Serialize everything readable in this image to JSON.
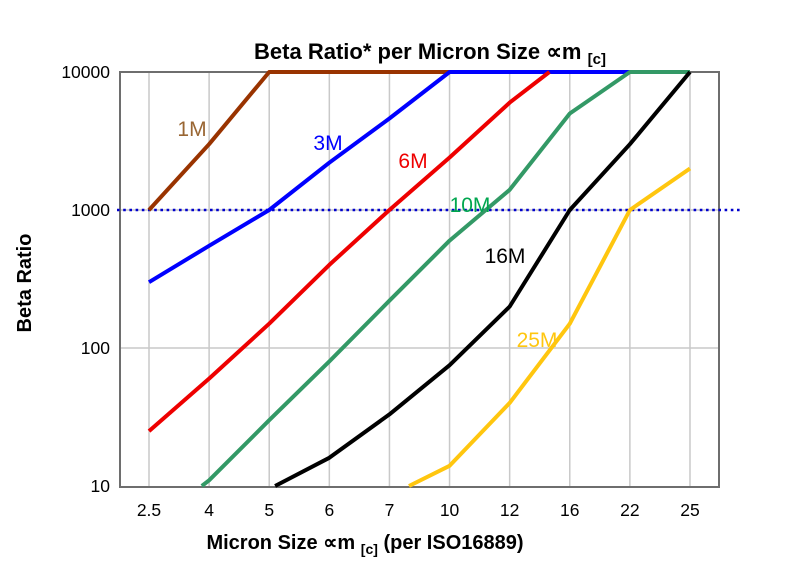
{
  "chart_data": {
    "type": "line",
    "title": "Beta Ratio* per Micron Size ∝m[c]",
    "title_parts": {
      "main": "Beta Ratio* per Micron Size ∝m",
      "sub": "[c]"
    },
    "xlabel": "Micron Size ∝m[c] (per ISO16889)",
    "xlabel_parts": {
      "pre": "Micron Size ∝m",
      "sub": "[c]",
      "post": " (per ISO16889)"
    },
    "ylabel": "Beta Ratio",
    "x_axis": {
      "scale": "category",
      "categories": [
        2.5,
        4,
        5,
        6,
        7,
        10,
        12,
        16,
        22,
        25
      ],
      "tick_labels": [
        "2.5",
        "4",
        "5",
        "6",
        "7",
        "10",
        "12",
        "16",
        "22",
        "25"
      ]
    },
    "y_axis": {
      "scale": "log",
      "range": [
        10,
        10000
      ],
      "ticks": [
        10,
        100,
        1000,
        10000
      ],
      "tick_labels": [
        "10",
        "100",
        "1000",
        "10000"
      ]
    },
    "reference_line": {
      "value": 1000,
      "style": "dotted",
      "color": "#0000CC"
    },
    "grid": {
      "vertical": true,
      "horizontal": true,
      "color": "#C9C9C9"
    },
    "plot_border_color": "#6E6E6E",
    "series": [
      {
        "name": "1M",
        "label": "1M",
        "color": "#993300",
        "label_color": "#996633",
        "values": [
          1000,
          3000,
          10000,
          10000,
          10000,
          10000,
          null,
          null,
          null,
          null
        ]
      },
      {
        "name": "3M",
        "label": "3M",
        "color": "#0000FF",
        "label_color": "#0000FF",
        "values": [
          300,
          550,
          1000,
          2200,
          4600,
          10000,
          10000,
          10000,
          10000,
          null
        ]
      },
      {
        "name": "6M",
        "label": "6M",
        "color": "#EE0000",
        "label_color": "#EE0000",
        "values": [
          25,
          60,
          150,
          400,
          1000,
          2400,
          6000,
          13000,
          null,
          null
        ]
      },
      {
        "name": "10M",
        "label": "10M",
        "color": "#339966",
        "label_color": "#00A64F",
        "values": [
          5,
          11,
          30,
          80,
          220,
          600,
          1400,
          5000,
          10000,
          10000
        ]
      },
      {
        "name": "16M",
        "label": "16M",
        "color": "#000000",
        "label_color": "#000000",
        "values": [
          null,
          null,
          9.5,
          16,
          33,
          75,
          200,
          1000,
          3000,
          10000
        ]
      },
      {
        "name": "25M",
        "label": "25M",
        "color": "#FFC60F",
        "label_color": "#FFC60F",
        "values": [
          null,
          null,
          null,
          null,
          8.5,
          14,
          40,
          150,
          1000,
          2000
        ]
      }
    ]
  }
}
